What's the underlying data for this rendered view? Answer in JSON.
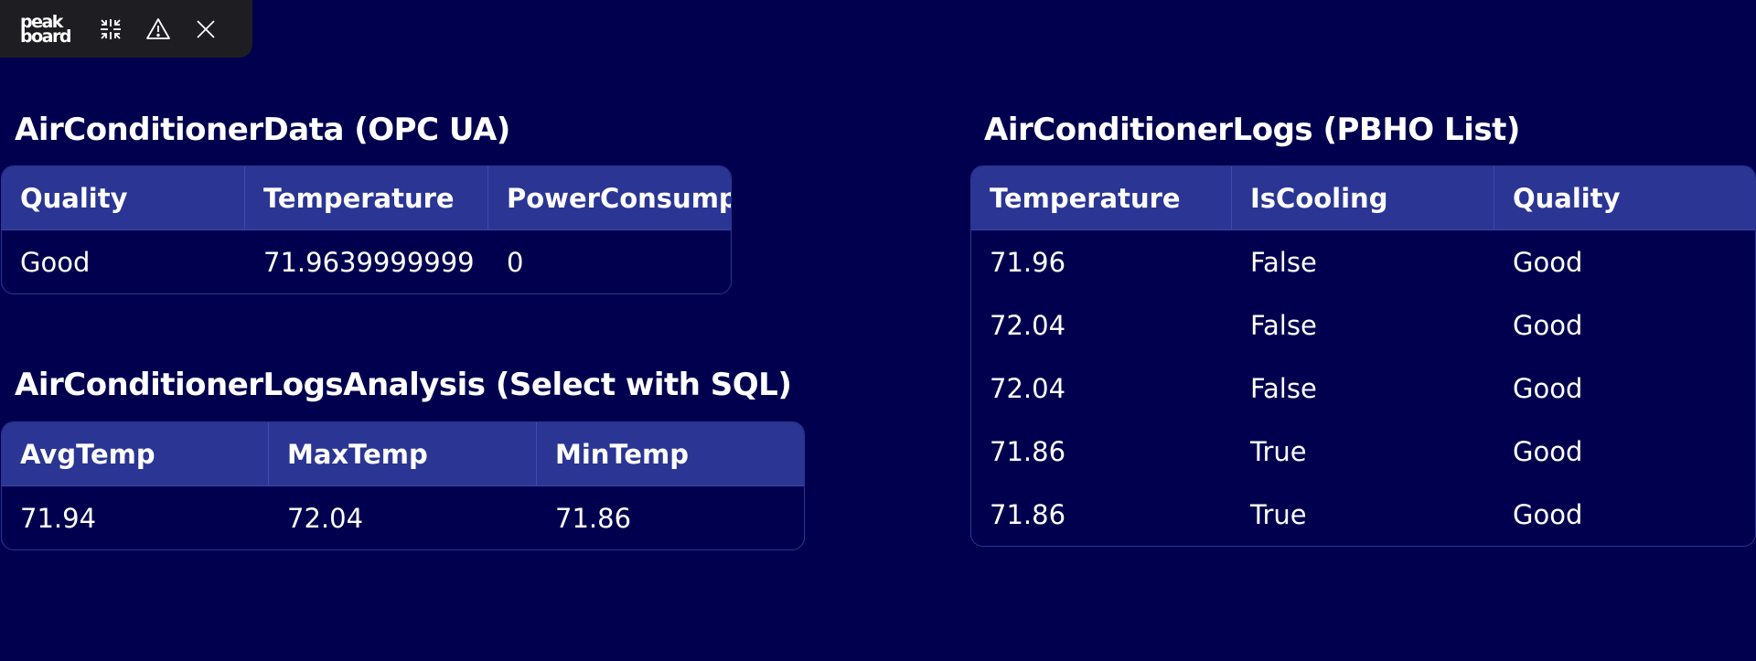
{
  "toolbar": {
    "logo_line1": "peak",
    "logo_line2": "board",
    "icons": [
      "collapse-icon",
      "warning-icon",
      "close-icon"
    ]
  },
  "colors": {
    "background": "#00004f",
    "table_header": "#2a3594",
    "table_border": "#2c3590",
    "toolbar": "#1e1e22"
  },
  "ac_data": {
    "title": "AirConditionerData (OPC UA)",
    "columns": [
      "Quality",
      "Temperature",
      "PowerConsump"
    ],
    "rows": [
      [
        "Good",
        "71.9639999999",
        "0"
      ]
    ]
  },
  "ac_analysis": {
    "title": "AirConditionerLogsAnalysis (Select with SQL)",
    "columns": [
      "AvgTemp",
      "MaxTemp",
      "MinTemp"
    ],
    "rows": [
      [
        "71.94",
        "72.04",
        "71.86"
      ]
    ]
  },
  "ac_logs": {
    "title": "AirConditionerLogs (PBHO List)",
    "columns": [
      "Temperature",
      "IsCooling",
      "Quality"
    ],
    "rows": [
      [
        "71.96",
        "False",
        "Good"
      ],
      [
        "72.04",
        "False",
        "Good"
      ],
      [
        "72.04",
        "False",
        "Good"
      ],
      [
        "71.86",
        "True",
        "Good"
      ],
      [
        "71.86",
        "True",
        "Good"
      ]
    ]
  }
}
